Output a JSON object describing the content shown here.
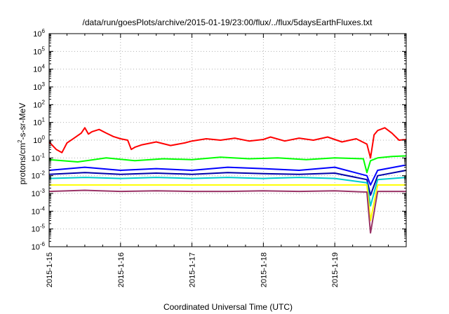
{
  "chart_data": {
    "type": "line",
    "title": "/data/run/goesPlots/archive/2015-01-19/23:00/flux/../flux/5daysEarthFluxes.txt",
    "xlabel": "Coordinated Universal Time (UTC)",
    "ylabel": "protons/cm2-s-sr-MeV",
    "ylabel_parts": [
      "protons/cm",
      "2",
      "-s-sr-MeV"
    ],
    "xlim": [
      0,
      5
    ],
    "ylim_exp": [
      -6,
      6
    ],
    "yscale": "log",
    "grid": true,
    "x_ticks": [
      {
        "x": 0,
        "label": "2015-1-15"
      },
      {
        "x": 1,
        "label": "2015-1-16"
      },
      {
        "x": 2,
        "label": "2015-1-17"
      },
      {
        "x": 3,
        "label": "2015-1-18"
      },
      {
        "x": 4,
        "label": "2015-1-19"
      }
    ],
    "y_ticks": [
      {
        "exp": 6,
        "label": "10",
        "sup": "6"
      },
      {
        "exp": 5,
        "label": "10",
        "sup": "5"
      },
      {
        "exp": 4,
        "label": "10",
        "sup": "4"
      },
      {
        "exp": 3,
        "label": "10",
        "sup": "3"
      },
      {
        "exp": 2,
        "label": "10",
        "sup": "2"
      },
      {
        "exp": 1,
        "label": "10",
        "sup": "1"
      },
      {
        "exp": 0,
        "label": "10",
        "sup": "0"
      },
      {
        "exp": -1,
        "label": "10",
        "sup": "-1"
      },
      {
        "exp": -2,
        "label": "10",
        "sup": "-2"
      },
      {
        "exp": -3,
        "label": "10",
        "sup": "-3"
      },
      {
        "exp": -4,
        "label": "10",
        "sup": "-4"
      },
      {
        "exp": -5,
        "label": "10",
        "sup": "-5"
      },
      {
        "exp": -6,
        "label": "10",
        "sup": "-6"
      }
    ],
    "series": [
      {
        "color": "#ff0000",
        "x": [
          0,
          0.1,
          0.18,
          0.25,
          0.35,
          0.45,
          0.5,
          0.55,
          0.6,
          0.7,
          0.8,
          0.9,
          1.0,
          1.1,
          1.15,
          1.2,
          1.3,
          1.5,
          1.7,
          1.9,
          2.0,
          2.2,
          2.4,
          2.6,
          2.8,
          3.0,
          3.1,
          3.3,
          3.5,
          3.7,
          3.9,
          4.1,
          4.3,
          4.45,
          4.5,
          4.55,
          4.6,
          4.7,
          4.8,
          4.9,
          5.0
        ],
        "y": [
          0.8,
          0.3,
          0.2,
          0.7,
          1.3,
          2.5,
          5.0,
          2.2,
          3.0,
          4.0,
          2.5,
          1.6,
          1.2,
          1.0,
          0.3,
          0.4,
          0.55,
          0.8,
          0.5,
          0.7,
          0.9,
          1.2,
          1.0,
          1.3,
          0.9,
          1.1,
          1.5,
          0.9,
          1.3,
          1.0,
          1.5,
          0.8,
          1.2,
          0.6,
          0.1,
          2.0,
          3.5,
          5.0,
          2.5,
          1.0,
          1.1
        ]
      },
      {
        "color": "#00ff00",
        "x": [
          0,
          0.4,
          0.8,
          1.2,
          1.6,
          2.0,
          2.4,
          2.8,
          3.2,
          3.6,
          4.0,
          4.4,
          4.45,
          4.5,
          4.6,
          4.8,
          5.0
        ],
        "y": [
          0.08,
          0.06,
          0.1,
          0.07,
          0.09,
          0.08,
          0.11,
          0.09,
          0.1,
          0.08,
          0.1,
          0.09,
          0.015,
          0.07,
          0.1,
          0.12,
          0.13
        ]
      },
      {
        "color": "#0000ff",
        "x": [
          0,
          0.5,
          1.0,
          1.5,
          2.0,
          2.5,
          3.0,
          3.5,
          4.0,
          4.45,
          4.5,
          4.6,
          5.0
        ],
        "y": [
          0.02,
          0.03,
          0.02,
          0.025,
          0.02,
          0.03,
          0.025,
          0.02,
          0.03,
          0.01,
          0.003,
          0.02,
          0.04
        ]
      },
      {
        "color": "#0000aa",
        "x": [
          0,
          0.5,
          1.0,
          1.5,
          2.0,
          2.5,
          3.0,
          3.5,
          4.0,
          4.45,
          4.5,
          4.6,
          5.0
        ],
        "y": [
          0.012,
          0.015,
          0.012,
          0.014,
          0.012,
          0.015,
          0.013,
          0.012,
          0.014,
          0.006,
          0.0008,
          0.01,
          0.02
        ]
      },
      {
        "color": "#00cccc",
        "x": [
          0,
          0.5,
          1.0,
          1.5,
          2.0,
          2.5,
          3.0,
          3.5,
          4.0,
          4.45,
          4.5,
          4.6,
          5.0
        ],
        "y": [
          0.007,
          0.008,
          0.007,
          0.008,
          0.007,
          0.008,
          0.007,
          0.008,
          0.007,
          0.004,
          0.0002,
          0.006,
          0.008
        ]
      },
      {
        "color": "#ffff00",
        "x": [
          0,
          1.0,
          2.0,
          3.0,
          4.0,
          4.45,
          4.5,
          4.6,
          5.0
        ],
        "y": [
          0.003,
          0.003,
          0.003,
          0.003,
          0.003,
          0.003,
          3e-05,
          0.003,
          0.003
        ]
      },
      {
        "color": "#993366",
        "x": [
          0,
          0.5,
          1.0,
          1.5,
          2.0,
          2.5,
          3.0,
          3.5,
          4.0,
          4.45,
          4.5,
          4.6,
          5.0
        ],
        "y": [
          0.0013,
          0.0015,
          0.0013,
          0.0014,
          0.0013,
          0.0013,
          0.0014,
          0.0013,
          0.0014,
          0.0012,
          6e-06,
          0.0013,
          0.0013
        ]
      }
    ]
  }
}
